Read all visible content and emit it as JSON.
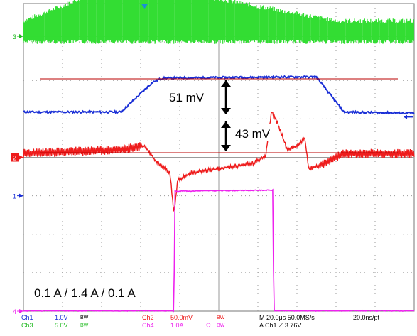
{
  "colors": {
    "ch1": "#1a2fd6",
    "ch2": "#ee1c1c",
    "ch3": "#33dd33",
    "ch4": "#ee22ee",
    "grid": "#9a9a9a",
    "border": "#777777",
    "marker": "#bb0000",
    "trigger": "#1a8fd6",
    "dark": "#000000"
  },
  "chart_data": {
    "type": "line",
    "xlabel": "",
    "ylabel": "",
    "x_divisions": 10,
    "y_divisions": 8,
    "series": [
      {
        "name": "Ch3",
        "ground_marker": "3",
        "style": "switching burst; dense between t≈2.0–3.8 div and 8.0–8.3 div",
        "envelope": [
          [
            0.0,
            0.4,
            1.2
          ],
          [
            2.0,
            1.2,
            1.3
          ],
          [
            3.8,
            1.2,
            0.4
          ],
          [
            8.0,
            0.4,
            1.2
          ],
          [
            8.3,
            0.4,
            0.4
          ],
          [
            10.0,
            0.4,
            0.4
          ]
        ]
      },
      {
        "name": "Ch1",
        "ground_marker": "1",
        "points": [
          [
            0.0,
            2.18
          ],
          [
            2.5,
            2.18
          ],
          [
            3.3,
            2.95
          ],
          [
            3.55,
            3.06
          ],
          [
            6.5,
            3.09
          ],
          [
            7.5,
            3.09
          ],
          [
            8.2,
            2.18
          ],
          [
            10.0,
            2.15
          ]
        ]
      },
      {
        "name": "Ch2",
        "ground_marker": "2",
        "points": [
          [
            0.0,
            1.1
          ],
          [
            2.5,
            1.2
          ],
          [
            3.1,
            1.3
          ],
          [
            3.4,
            0.9
          ],
          [
            3.75,
            0.6
          ],
          [
            3.85,
            -0.45
          ],
          [
            3.95,
            0.4
          ],
          [
            4.3,
            0.6
          ],
          [
            5.0,
            0.7
          ],
          [
            5.9,
            0.85
          ],
          [
            6.2,
            1.05
          ],
          [
            6.35,
            2.2
          ],
          [
            6.5,
            1.9
          ],
          [
            6.75,
            1.2
          ],
          [
            7.0,
            1.3
          ],
          [
            7.2,
            1.5
          ],
          [
            7.3,
            0.7
          ],
          [
            7.6,
            0.8
          ],
          [
            8.2,
            1.1
          ],
          [
            10.0,
            1.1
          ]
        ],
        "ripple": 0.15
      },
      {
        "name": "Ch4",
        "ground_marker": "4",
        "points": [
          [
            0.0,
            0.0
          ],
          [
            3.85,
            0.0
          ],
          [
            3.88,
            1.27
          ],
          [
            6.38,
            1.28
          ],
          [
            6.41,
            0.0
          ],
          [
            10.0,
            0.0
          ]
        ]
      }
    ],
    "annotations": [
      {
        "text": "51 mV",
        "value_mV": 51
      },
      {
        "text": "43 mV",
        "value_mV": 43
      },
      {
        "text": "0.1 A / 1.4 A / 0.1 A"
      }
    ]
  },
  "status_bar": {
    "ch1_label": "Ch1",
    "ch1_scale": "1.0V",
    "ch1_bw": "BW",
    "ch3_label": "Ch3",
    "ch3_scale": "5.0V",
    "ch3_bw": "BW",
    "ch2_label": "Ch2",
    "ch2_scale": "50.0mV",
    "ch2_bw": "BW",
    "ch4_label": "Ch4",
    "ch4_scale": "1.0A",
    "ch4_ohm": "Ω",
    "ch4_bw": "BW",
    "timebase": "M 20.0μs 50.0MS/s",
    "resolution": "20.0ns/pt",
    "trigger": "A  Ch1  ⟋  3.76V"
  }
}
